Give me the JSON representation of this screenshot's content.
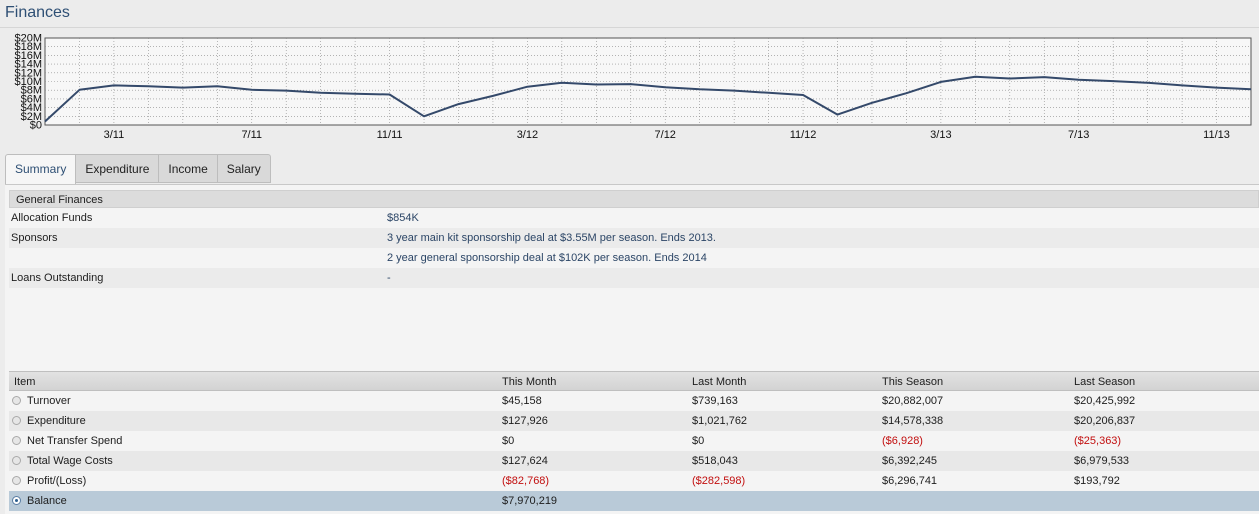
{
  "page": {
    "title": "Finances"
  },
  "chart_data": {
    "type": "line",
    "title": "",
    "xlabel": "",
    "ylabel": "",
    "ylim": [
      0,
      20000000
    ],
    "y_ticks": [
      "$0",
      "$2M",
      "$4M",
      "$6M",
      "$8M",
      "$10M",
      "$12M",
      "$14M",
      "$16M",
      "$18M",
      "$20M"
    ],
    "x_ticks": [
      "3/11",
      "7/11",
      "11/11",
      "3/12",
      "7/12",
      "11/12",
      "3/13",
      "7/13",
      "11/13"
    ],
    "grid": true,
    "color": "#34496a",
    "series": [
      {
        "values": [
          800000,
          8100000,
          9100000,
          8900000,
          8600000,
          8900000,
          8100000,
          7900000,
          7400000,
          7200000,
          7000000,
          2000000,
          4800000,
          6700000,
          8800000,
          9700000,
          9300000,
          9400000,
          8700000,
          8200000,
          7900000,
          7400000,
          6900000,
          2400000,
          5100000,
          7300000,
          9900000,
          11100000,
          10700000,
          11000000,
          10400000,
          10100000,
          9700000,
          9100000,
          8600000,
          8200000
        ]
      }
    ]
  },
  "tabs": [
    {
      "label": "Summary",
      "active": true
    },
    {
      "label": "Expenditure",
      "active": false
    },
    {
      "label": "Income",
      "active": false
    },
    {
      "label": "Salary",
      "active": false
    }
  ],
  "general": {
    "header": "General Finances",
    "rows": [
      {
        "label": "Allocation Funds",
        "value": "$854K"
      },
      {
        "label": "Sponsors",
        "value": "3 year main kit sponsorship deal at $3.55M per season. Ends 2013."
      },
      {
        "label": "",
        "value": "2 year general sponsorship deal at $102K per season. Ends 2014"
      },
      {
        "label": "Loans Outstanding",
        "value": "-"
      }
    ]
  },
  "summary_table": {
    "columns": [
      "Item",
      "This Month",
      "Last Month",
      "This Season",
      "Last Season"
    ],
    "rows": [
      {
        "item": "Turnover",
        "this_month": "$45,158",
        "last_month": "$739,163",
        "this_season": "$20,882,007",
        "last_season": "$20,425,992"
      },
      {
        "item": "Expenditure",
        "this_month": "$127,926",
        "last_month": "$1,021,762",
        "this_season": "$14,578,338",
        "last_season": "$20,206,837"
      },
      {
        "item": "Net Transfer Spend",
        "this_month": "$0",
        "last_month": "$0",
        "this_season": "($6,928)",
        "last_season": "($25,363)"
      },
      {
        "item": "Total Wage Costs",
        "this_month": "$127,624",
        "last_month": "$518,043",
        "this_season": "$6,392,245",
        "last_season": "$6,979,533"
      },
      {
        "item": "Profit/(Loss)",
        "this_month": "($82,768)",
        "last_month": "($282,598)",
        "this_season": "$6,296,741",
        "last_season": "$193,792"
      },
      {
        "item": "Balance",
        "this_month": "$7,970,219",
        "last_month": "",
        "this_season": "",
        "last_season": ""
      }
    ],
    "selected_row": "Balance",
    "negative_color": "#c20f0f"
  }
}
